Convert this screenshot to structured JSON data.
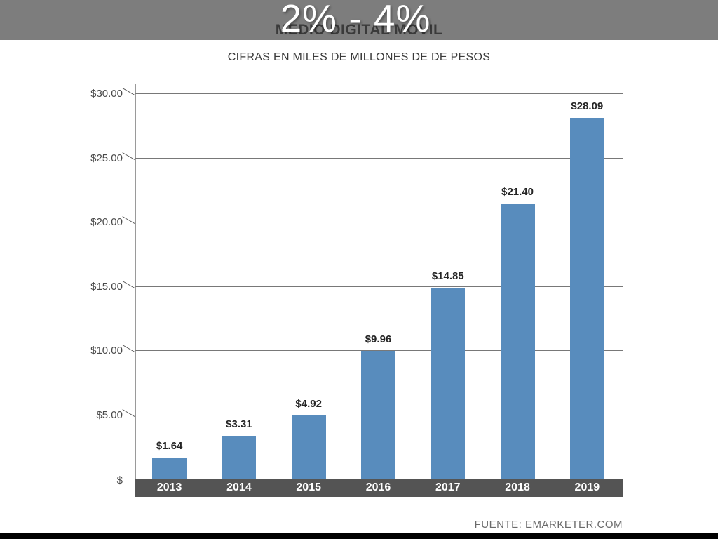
{
  "header": {
    "percent_overlay": "2% - 4%",
    "title": "MEDIO DIGITAL MOVIL",
    "subtitle": "CIFRAS EN MILES DE MILLONES DE DE PESOS"
  },
  "footer": {
    "source": "FUENTE: EMARKETER.COM"
  },
  "colors": {
    "band_gray": "#7d7d7d",
    "bar_blue": "#588cbd",
    "strip_gray": "#545454",
    "gridline_gray": "#787878",
    "bottom_bar_black": "#000000",
    "title_text": "#3a3a3a",
    "year_text": "#ffffff"
  },
  "chart_data": {
    "type": "bar",
    "title": "MEDIO DIGITAL MOVIL",
    "subtitle": "CIFRAS EN MILES DE MILLONES DE DE PESOS",
    "categories": [
      "2013",
      "2014",
      "2015",
      "2016",
      "2017",
      "2018",
      "2019"
    ],
    "values": [
      1.64,
      3.31,
      4.92,
      9.96,
      14.85,
      21.4,
      28.09
    ],
    "bar_labels": [
      "$1.64",
      "$3.31",
      "$4.92",
      "$9.96",
      "$14.85",
      "$21.40",
      "$28.09"
    ],
    "xlabel": "",
    "ylabel": "",
    "ylim": [
      0,
      30
    ],
    "y_ticks": [
      {
        "value": 30,
        "label": "$30.00"
      },
      {
        "value": 25,
        "label": "$25.00"
      },
      {
        "value": 20,
        "label": "$20.00"
      },
      {
        "value": 15,
        "label": "$15.00"
      },
      {
        "value": 10,
        "label": "$10.00"
      },
      {
        "value": 5,
        "label": "$5.00"
      },
      {
        "value": 0,
        "label": "$"
      }
    ],
    "grid": true,
    "legend": false,
    "source": "FUENTE: EMARKETER.COM"
  }
}
